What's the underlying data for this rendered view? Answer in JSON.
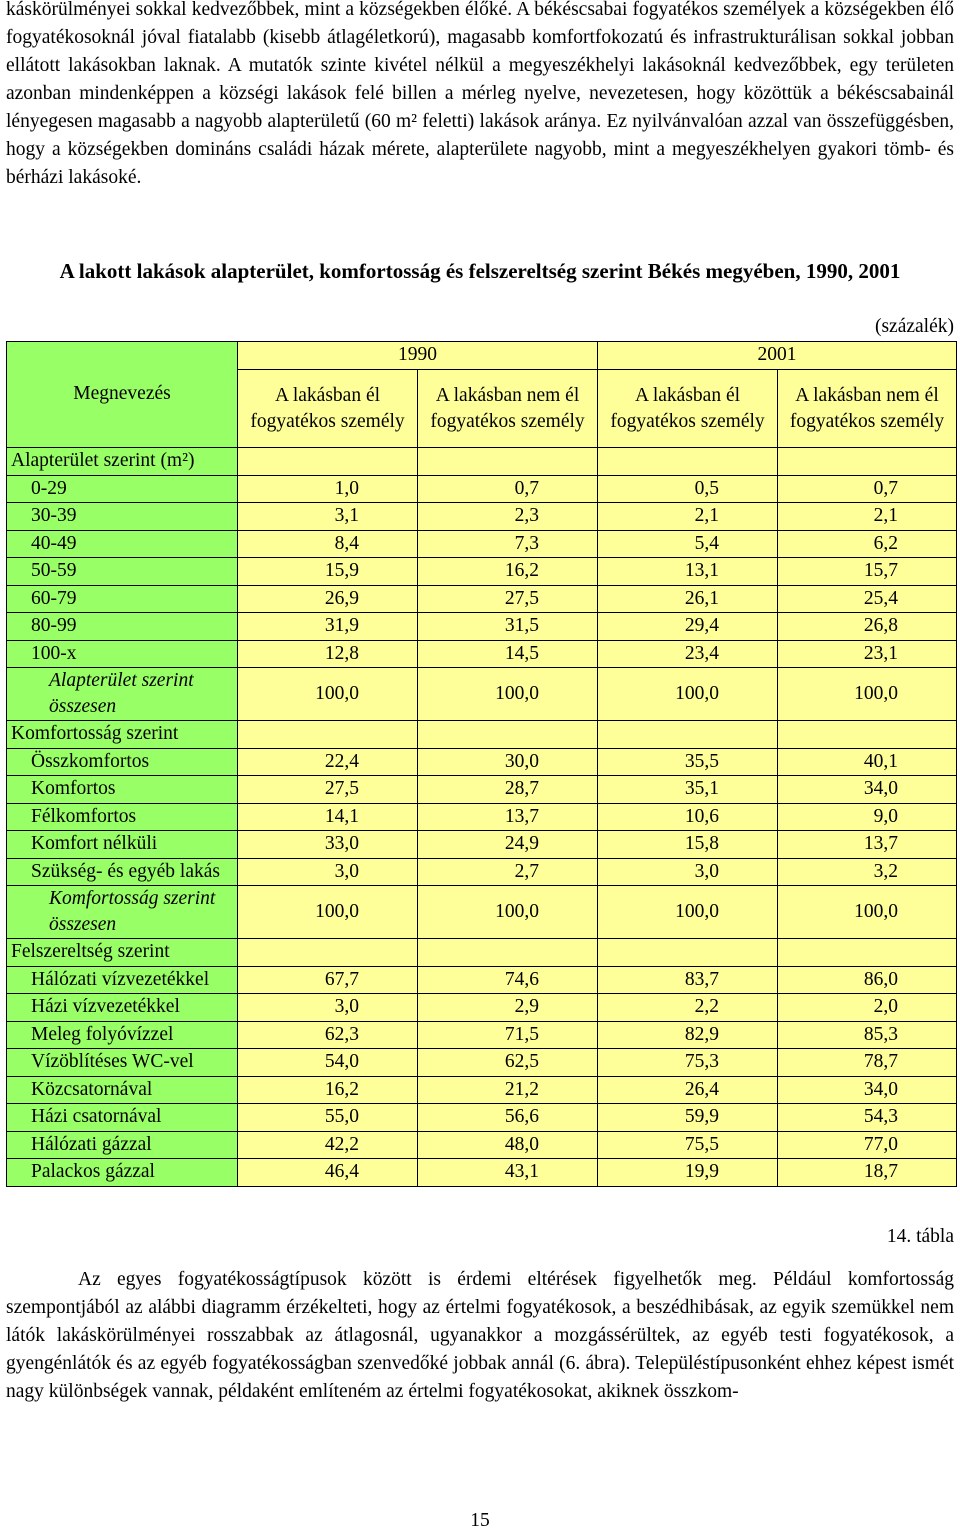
{
  "top_text": "káskörülményei sokkal kedvezőbbek, mint a községekben élőké. A békéscsabai fogyatékos személyek a községekben élő fogyatékosoknál jóval fiatalabb (kisebb átlagéletkorú), magasabb komfortfokozatú és infrastrukturálisan sokkal jobban ellátott lakásokban laknak. A mutatók szinte kivétel nélkül a megyeszékhelyi lakásoknál kedvezőbbek, egy területen azonban mindenképpen a községi lakások felé billen a mérleg nyelve, nevezetesen, hogy közöttük a békéscsabainál lényegesen magasabb a nagyobb alapterületű (60 m² feletti) lakások aránya. Ez nyilvánvalóan azzal van összefüggésben, hogy a községekben domináns családi házak mérete, alapterülete nagyobb, mint a megyeszékhelyen gyakori tömb- és bérházi lakásoké.",
  "table": {
    "title": "A lakott lakások alapterület, komfortosság és felszereltség szerint Békés megyében, 1990, 2001",
    "unit": "(százalék)",
    "header": {
      "label": "Megnevezés",
      "year1": "1990",
      "year2": "2001",
      "col_with": "A lakásban él fogyatékos személy",
      "col_without": "A lakásban nem él fogyatékos személy"
    },
    "sections": [
      {
        "heading": "Alapterület szerint (m²)",
        "rows": [
          {
            "label": "0-29",
            "v": [
              "1,0",
              "0,7",
              "0,5",
              "0,7"
            ]
          },
          {
            "label": "30-39",
            "v": [
              "3,1",
              "2,3",
              "2,1",
              "2,1"
            ]
          },
          {
            "label": "40-49",
            "v": [
              "8,4",
              "7,3",
              "5,4",
              "6,2"
            ]
          },
          {
            "label": "50-59",
            "v": [
              "15,9",
              "16,2",
              "13,1",
              "15,7"
            ]
          },
          {
            "label": "60-79",
            "v": [
              "26,9",
              "27,5",
              "26,1",
              "25,4"
            ]
          },
          {
            "label": "80-99",
            "v": [
              "31,9",
              "31,5",
              "29,4",
              "26,8"
            ]
          },
          {
            "label": "100-x",
            "v": [
              "12,8",
              "14,5",
              "23,4",
              "23,1"
            ]
          }
        ],
        "total": {
          "label": "Alapterület szerint összesen",
          "v": [
            "100,0",
            "100,0",
            "100,0",
            "100,0"
          ]
        }
      },
      {
        "heading": "Komfortosság szerint",
        "rows": [
          {
            "label": "Összkomfortos",
            "v": [
              "22,4",
              "30,0",
              "35,5",
              "40,1"
            ]
          },
          {
            "label": "Komfortos",
            "v": [
              "27,5",
              "28,7",
              "35,1",
              "34,0"
            ]
          },
          {
            "label": "Félkomfortos",
            "v": [
              "14,1",
              "13,7",
              "10,6",
              "9,0"
            ]
          },
          {
            "label": "Komfort nélküli",
            "v": [
              "33,0",
              "24,9",
              "15,8",
              "13,7"
            ]
          },
          {
            "label": "Szükség- és egyéb lakás",
            "v": [
              "3,0",
              "2,7",
              "3,0",
              "3,2"
            ]
          }
        ],
        "total": {
          "label": "Komfortosság szerint összesen",
          "v": [
            "100,0",
            "100,0",
            "100,0",
            "100,0"
          ]
        }
      },
      {
        "heading": "Felszereltség szerint",
        "rows": [
          {
            "label": "Hálózati vízvezetékkel",
            "v": [
              "67,7",
              "74,6",
              "83,7",
              "86,0"
            ]
          },
          {
            "label": "Házi vízvezetékkel",
            "v": [
              "3,0",
              "2,9",
              "2,2",
              "2,0"
            ]
          },
          {
            "label": "Meleg folyóvízzel",
            "v": [
              "62,3",
              "71,5",
              "82,9",
              "85,3"
            ]
          },
          {
            "label": "Vízöblítéses WC-vel",
            "v": [
              "54,0",
              "62,5",
              "75,3",
              "78,7"
            ]
          },
          {
            "label": "Közcsatornával",
            "v": [
              "16,2",
              "21,2",
              "26,4",
              "34,0"
            ]
          },
          {
            "label": "Házi csatornával",
            "v": [
              "55,0",
              "56,6",
              "59,9",
              "54,3"
            ]
          },
          {
            "label": "Hálózati gázzal",
            "v": [
              "42,2",
              "48,0",
              "75,5",
              "77,0"
            ]
          },
          {
            "label": "Palackos gázzal",
            "v": [
              "46,4",
              "43,1",
              "19,9",
              "18,7"
            ]
          }
        ]
      }
    ],
    "caption": "14. tábla"
  },
  "bottom_text": "Az egyes fogyatékosságtípusok között is érdemi eltérések figyelhetők meg. Például komfortosság szempontjából az alábbi diagramm érzékelteti, hogy az értelmi fogyatékosok, a beszédhibásak, az egyik szemükkel nem látók lakáskörülményei rosszabbak az átlagosnál, ugyanakkor a mozgássérültek, az egyéb testi fogyatékosok, a gyengénlátók és az egyéb fogyatékosságban szenvedőké jobbak annál (6. ábra). Településtípusonként ehhez képest ismét nagy különbségek vannak, példaként említeném az értelmi fogyatékosokat, akiknek összkom-",
  "page_number": "15"
}
